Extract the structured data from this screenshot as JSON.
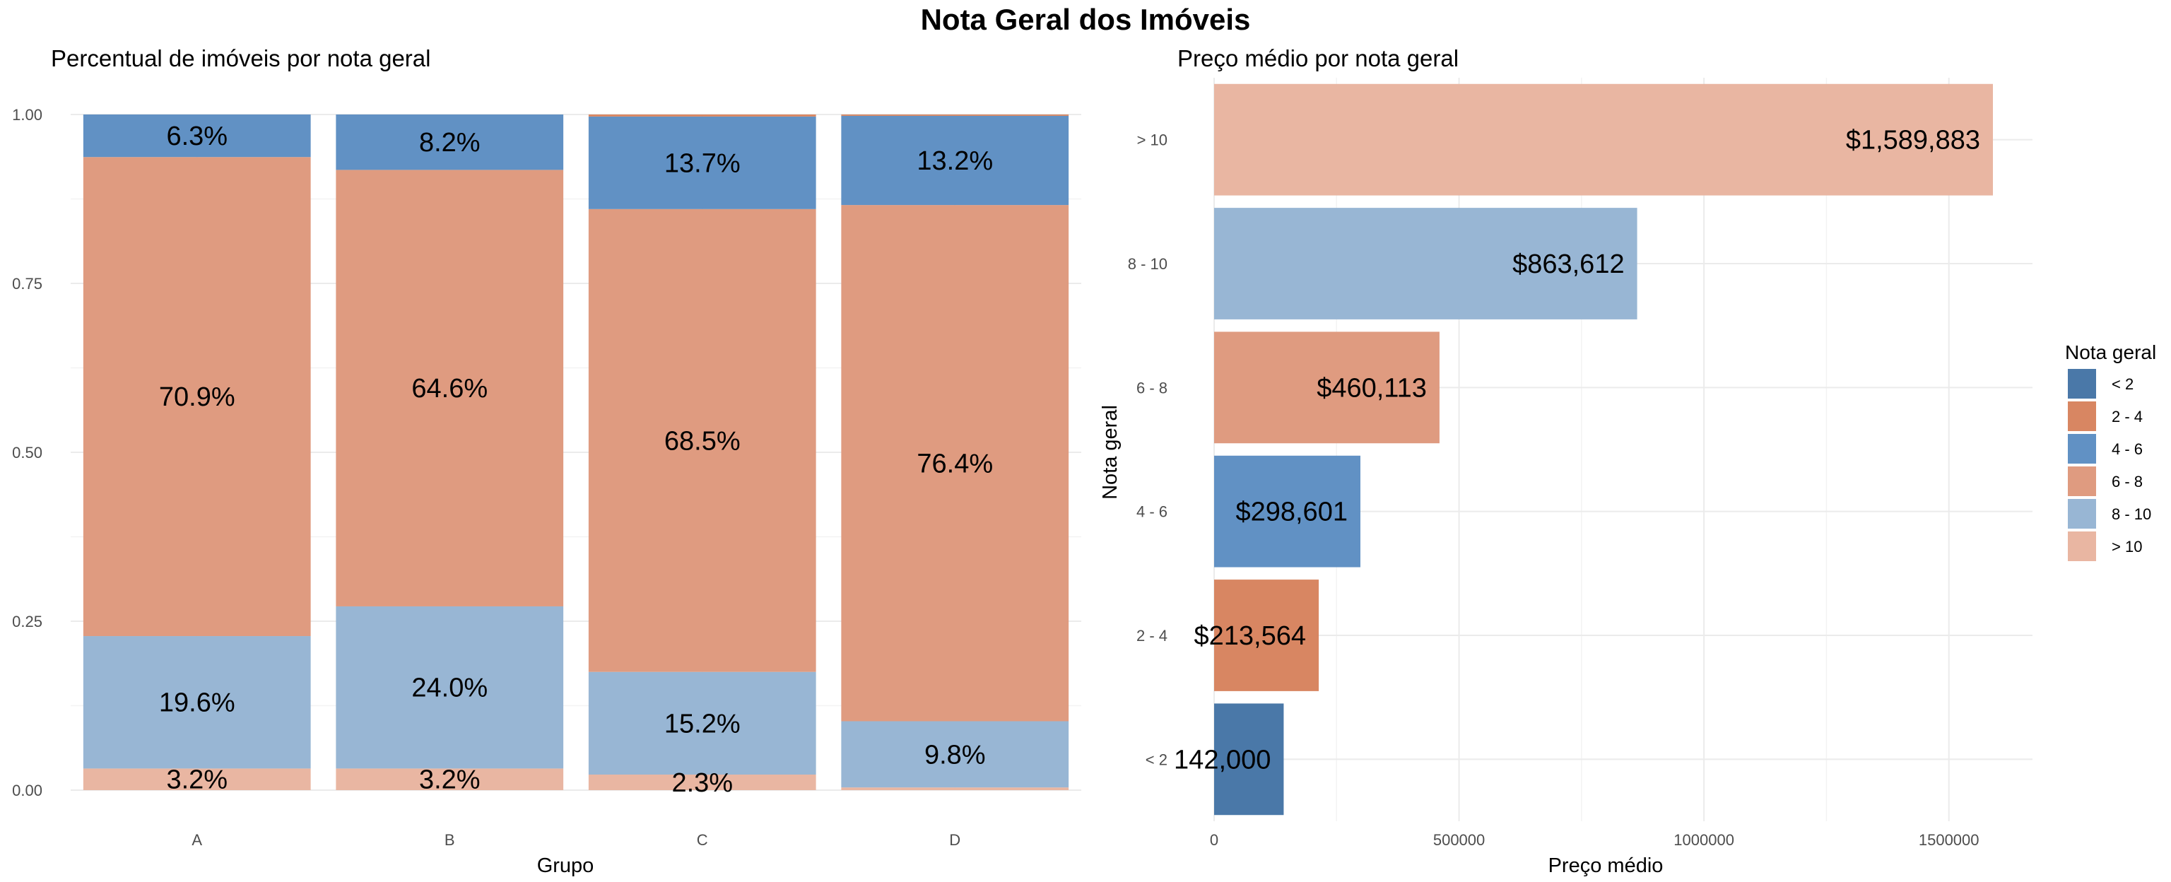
{
  "title": "Nota Geral dos Imóveis",
  "palette": {
    "< 2": "#4a78a8",
    "2 - 4": "#d88662",
    "4 - 6": "#6191c4",
    "6 - 8": "#df9b80",
    "8 - 10": "#98b6d4",
    "> 10": "#e9b6a2"
  },
  "legend": {
    "title": "Nota geral",
    "items": [
      "< 2",
      "2 - 4",
      "4 - 6",
      "6 - 8",
      "8 - 10",
      "> 10"
    ]
  },
  "chart_data": [
    {
      "type": "bar",
      "stacked": true,
      "title": "Percentual de imóveis por nota geral",
      "xlabel": "Grupo",
      "ylabel": "",
      "ylim": [
        0,
        1
      ],
      "yticks": [
        "0.00",
        "0.25",
        "0.50",
        "0.75",
        "1.00"
      ],
      "categories": [
        "A",
        "B",
        "C",
        "D"
      ],
      "series": [
        {
          "name": "> 10",
          "values": [
            0.032,
            0.032,
            0.023,
            0.004
          ],
          "labels": [
            "3.2%",
            "3.2%",
            "2.3%",
            ""
          ]
        },
        {
          "name": "8 - 10",
          "values": [
            0.196,
            0.24,
            0.152,
            0.098
          ],
          "labels": [
            "19.6%",
            "24.0%",
            "15.2%",
            "9.8%"
          ]
        },
        {
          "name": "6 - 8",
          "values": [
            0.709,
            0.646,
            0.685,
            0.764
          ],
          "labels": [
            "70.9%",
            "64.6%",
            "68.5%",
            "76.4%"
          ]
        },
        {
          "name": "4 - 6",
          "values": [
            0.063,
            0.082,
            0.137,
            0.132
          ],
          "labels": [
            "6.3%",
            "8.2%",
            "13.7%",
            "13.2%"
          ]
        },
        {
          "name": "2 - 4",
          "values": [
            0.0,
            0.0,
            0.003,
            0.002
          ],
          "labels": [
            "",
            "",
            "",
            ""
          ]
        }
      ]
    },
    {
      "type": "bar",
      "orientation": "horizontal",
      "title": "Preço médio por nota geral",
      "xlabel": "Preço médio",
      "ylabel": "Nota geral",
      "xlim": [
        0,
        1650000
      ],
      "xticks": [
        0,
        500000,
        1000000,
        1500000
      ],
      "xtick_labels": [
        "0",
        "500000",
        "1000000",
        "1500000"
      ],
      "categories": [
        "< 2",
        "2 - 4",
        "4 - 6",
        "6 - 8",
        "8 - 10",
        "> 10"
      ],
      "values": [
        142000,
        213564,
        298601,
        460113,
        863612,
        1589883
      ],
      "labels": [
        "142,000",
        "$213,564",
        "$298,601",
        "$460,113",
        "$863,612",
        "$1,589,883"
      ]
    }
  ]
}
